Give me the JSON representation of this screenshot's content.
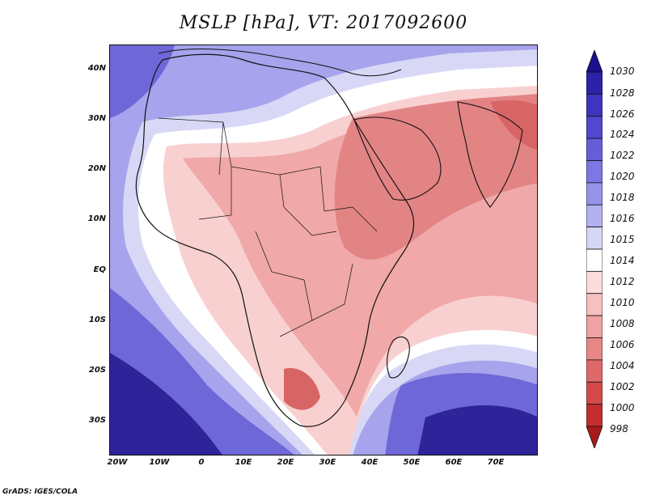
{
  "title": "MSLP [hPa], VT: 2017092600",
  "footer": "GrADS: IGES/COLA",
  "lat_labels": [
    "40N",
    "30N",
    "20N",
    "10N",
    "EQ",
    "10S",
    "20S",
    "30S"
  ],
  "lon_labels": [
    "20W",
    "10W",
    "0",
    "10E",
    "20E",
    "30E",
    "40E",
    "50E",
    "60E",
    "70E"
  ],
  "colorbar": {
    "top_value": "1030",
    "labels": [
      "1028",
      "1026",
      "1024",
      "1022",
      "1020",
      "1018",
      "1016",
      "1015",
      "1014",
      "1012",
      "1010",
      "1008",
      "1006",
      "1004",
      "1002",
      "1000",
      "998"
    ],
    "colors": [
      "#1a0f8c",
      "#2b22a8",
      "#3d35bf",
      "#5048cf",
      "#655edb",
      "#7c77e3",
      "#9693ea",
      "#b3b1f0",
      "#d6d6f6",
      "#ffffff",
      "#fcdcdc",
      "#f7c0c0",
      "#f0a3a3",
      "#e88686",
      "#df6868",
      "#d44a4a",
      "#c32e2e",
      "#a81a1a"
    ]
  },
  "field_colors": {
    "high_deep": "#2e2399",
    "high_mid": "#6e67d8",
    "high_light": "#a7a3ec",
    "neutral_high": "#d8d8f6",
    "neutral": "#ffffff",
    "low_light": "#f9d0d0",
    "low_mid": "#f0a8a8",
    "low_deep": "#e38484",
    "low_core": "#d86565"
  }
}
